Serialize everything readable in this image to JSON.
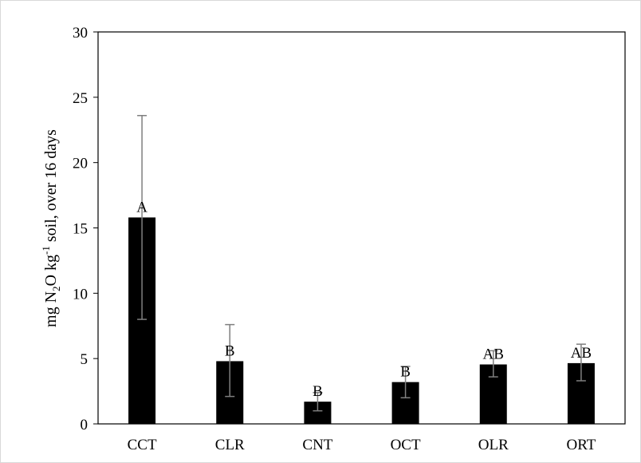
{
  "chart_data": {
    "type": "bar",
    "categories": [
      "CCT",
      "CLR",
      "CNT",
      "OCT",
      "OLR",
      "ORT"
    ],
    "values": [
      15.8,
      4.8,
      1.7,
      3.2,
      4.55,
      4.65
    ],
    "error_upper": [
      23.6,
      7.6,
      2.4,
      4.4,
      5.6,
      6.1
    ],
    "error_lower": [
      8.0,
      2.1,
      1.0,
      2.0,
      3.6,
      3.3
    ],
    "significance_labels": [
      "A",
      "B",
      "B",
      "B",
      "AB",
      "AB"
    ],
    "ylabel": {
      "prefix": "mg  N",
      "sub": "2",
      "mid": "O kg",
      "sup": "-1",
      "suffix": " soil, over 16 days"
    },
    "ylim": [
      0,
      30
    ],
    "yticks": [
      "0",
      "5",
      "10",
      "15",
      "20",
      "25",
      "30"
    ],
    "grid": false,
    "legend": "none",
    "colors": {
      "bar": "#000000",
      "error_bar": "#7f7f7f",
      "axis": "#000000"
    }
  }
}
